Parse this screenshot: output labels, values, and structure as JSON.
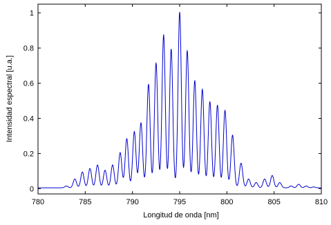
{
  "chart_data": {
    "type": "line",
    "xlabel": "Longitud de onda [nm]",
    "ylabel": "Intensidad espectral [u.a.]",
    "xlim": [
      780,
      810
    ],
    "ylim": [
      -0.03,
      1.05
    ],
    "xticks": [
      780,
      785,
      790,
      795,
      800,
      805,
      810
    ],
    "yticks": [
      0,
      0.2,
      0.4,
      0.6,
      0.8,
      1
    ],
    "ytick_labels": [
      "0",
      "0.2",
      "0.4",
      "0.6",
      "0.8",
      "1"
    ],
    "grid": false,
    "series": [
      {
        "color": "#0000cc",
        "fringe_period_nm": 0.78,
        "baseline": 0.005,
        "peaks": [
          [
            783.0,
            0.01
          ],
          [
            783.9,
            0.05
          ],
          [
            784.7,
            0.09
          ],
          [
            785.5,
            0.11
          ],
          [
            786.3,
            0.13
          ],
          [
            787.1,
            0.1
          ],
          [
            787.9,
            0.13
          ],
          [
            788.7,
            0.2
          ],
          [
            789.4,
            0.28
          ],
          [
            790.2,
            0.32
          ],
          [
            790.9,
            0.37
          ],
          [
            791.7,
            0.59
          ],
          [
            792.5,
            0.71
          ],
          [
            793.3,
            0.87
          ],
          [
            794.1,
            0.79
          ],
          [
            795.0,
            1.0
          ],
          [
            795.8,
            0.78
          ],
          [
            796.6,
            0.61
          ],
          [
            797.4,
            0.56
          ],
          [
            798.2,
            0.49
          ],
          [
            799.0,
            0.47
          ],
          [
            799.8,
            0.44
          ],
          [
            800.6,
            0.3
          ],
          [
            801.5,
            0.14
          ],
          [
            802.3,
            0.05
          ],
          [
            803.1,
            0.03
          ],
          [
            804.0,
            0.05
          ],
          [
            804.8,
            0.07
          ],
          [
            805.6,
            0.03
          ],
          [
            806.8,
            0.01
          ],
          [
            807.6,
            0.02
          ],
          [
            808.4,
            0.01
          ],
          [
            809.2,
            0.005
          ]
        ]
      }
    ]
  }
}
